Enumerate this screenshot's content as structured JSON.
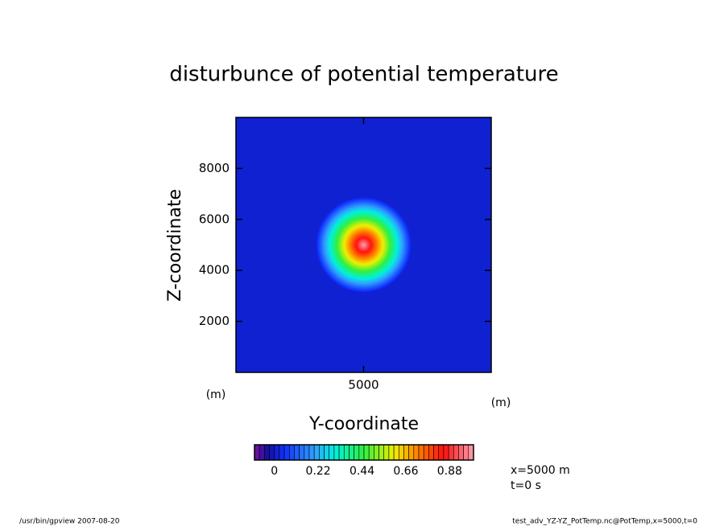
{
  "chart_data": {
    "type": "contour",
    "title": "disturbunce of potential temperature",
    "xlabel": "Y-coordinate",
    "ylabel": "Z-coordinate",
    "xunit": "(m)",
    "yunit": "(m)",
    "xlim": [
      0,
      10000
    ],
    "ylim": [
      0,
      10000
    ],
    "xticks": [
      5000
    ],
    "yticks": [
      2000,
      4000,
      6000,
      8000
    ],
    "field": {
      "center_x": 5000,
      "center_y": 5000,
      "peak": 1.0,
      "radius": 1900
    },
    "levels": [
      -0.1,
      -0.075,
      -0.05,
      -0.025,
      0,
      0.025,
      0.05,
      0.075,
      0.1,
      0.125,
      0.15,
      0.175,
      0.2,
      0.225,
      0.25,
      0.275,
      0.3,
      0.325,
      0.35,
      0.375,
      0.4,
      0.425,
      0.45,
      0.475,
      0.5,
      0.525,
      0.55,
      0.575,
      0.6,
      0.625,
      0.65,
      0.675,
      0.7,
      0.725,
      0.75,
      0.775,
      0.8,
      0.825,
      0.85,
      0.875,
      0.9,
      0.925,
      0.95,
      0.975,
      1.0
    ],
    "colormap": [
      {
        "value": -0.1,
        "color": "#7a10a0"
      },
      {
        "value": -0.03,
        "color": "#1010a0"
      },
      {
        "value": 0.05,
        "color": "#1030ff"
      },
      {
        "value": 0.2,
        "color": "#30a0ff"
      },
      {
        "value": 0.3,
        "color": "#00f0e0"
      },
      {
        "value": 0.45,
        "color": "#30f040"
      },
      {
        "value": 0.6,
        "color": "#f0f000"
      },
      {
        "value": 0.72,
        "color": "#ff8000"
      },
      {
        "value": 0.85,
        "color": "#ff1010"
      },
      {
        "value": 1.0,
        "color": "#ffa0b0"
      }
    ],
    "colorbar_ticks": [
      0,
      0.22,
      0.44,
      0.66,
      0.88
    ],
    "annotations": [
      "x=5000 m",
      "t=0 s"
    ],
    "footer_left": "/usr/bin/gpview  2007-08-20",
    "footer_right": "test_adv_YZ-YZ_PotTemp.nc@PotTemp,x=5000,t=0"
  }
}
